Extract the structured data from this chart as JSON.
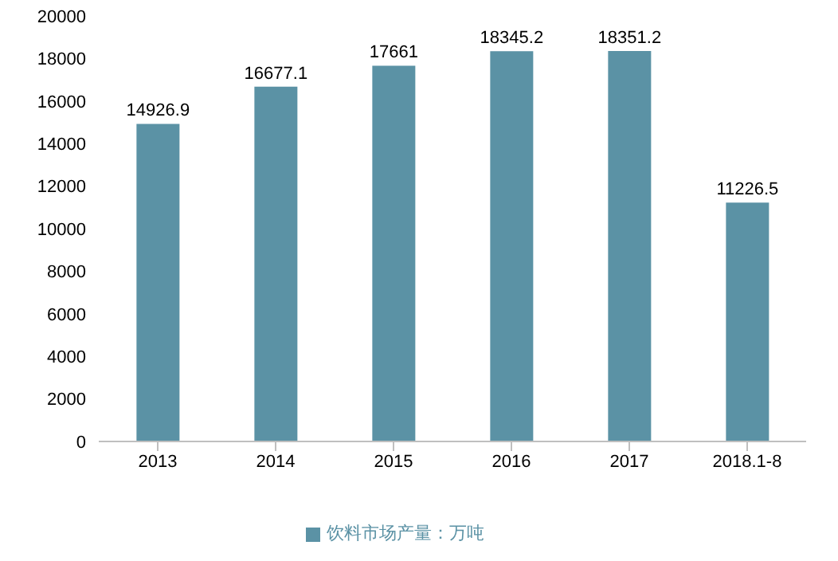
{
  "chart_data": {
    "type": "bar",
    "categories": [
      "2013",
      "2014",
      "2015",
      "2016",
      "2017",
      "2018.1-8"
    ],
    "series": [
      {
        "name": "饮料市场产量：万吨",
        "color": "#5b92a5",
        "values": [
          14926.9,
          16677.1,
          17661,
          18345.2,
          18351.2,
          11226.5
        ]
      }
    ],
    "ylim": [
      0,
      20000
    ],
    "yticks": [
      0,
      2000,
      4000,
      6000,
      8000,
      10000,
      12000,
      14000,
      16000,
      18000,
      20000
    ],
    "grid": false,
    "legend": "bottom",
    "data_labels": true
  }
}
